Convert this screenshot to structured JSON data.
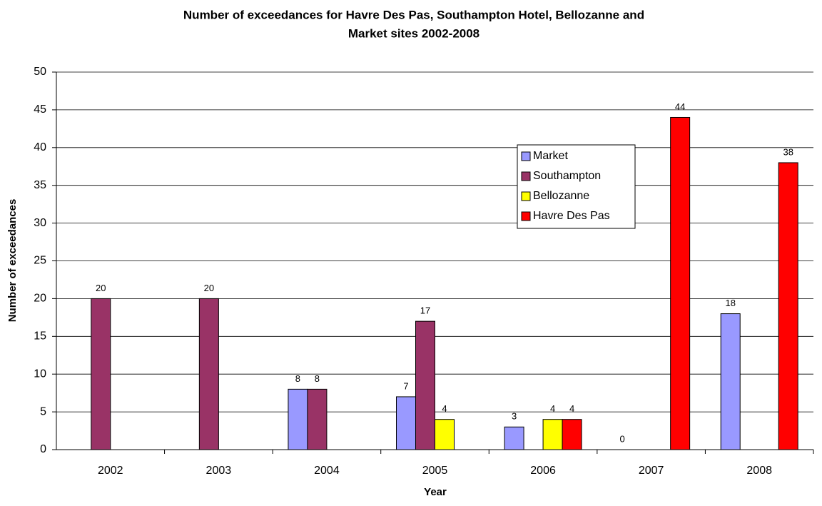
{
  "chart_data": {
    "type": "bar",
    "title": [
      "Number of exceedances for Havre Des Pas, Southampton Hotel, Bellozanne and",
      "Market sites 2002-2008"
    ],
    "x_label": "Year",
    "y_label": "Number of exceedances",
    "categories": [
      "2002",
      "2003",
      "2004",
      "2005",
      "2006",
      "2007",
      "2008"
    ],
    "series": [
      {
        "name": "Market",
        "color": "#9999ff",
        "values": [
          null,
          null,
          8,
          7,
          3,
          0,
          18
        ]
      },
      {
        "name": "Southampton",
        "color": "#993366",
        "values": [
          20,
          20,
          8,
          17,
          null,
          null,
          null
        ]
      },
      {
        "name": "Bellozanne",
        "color": "#ffff00",
        "values": [
          null,
          null,
          null,
          4,
          4,
          null,
          null
        ]
      },
      {
        "name": "Havre Des Pas",
        "color": "#ff0000",
        "values": [
          null,
          null,
          null,
          null,
          4,
          44,
          38
        ]
      }
    ],
    "ylim": [
      0,
      50
    ],
    "yticks": [
      0,
      5,
      10,
      15,
      20,
      25,
      30,
      35,
      40,
      45,
      50
    ],
    "grid": true,
    "legend": "right",
    "data_labels": true
  }
}
